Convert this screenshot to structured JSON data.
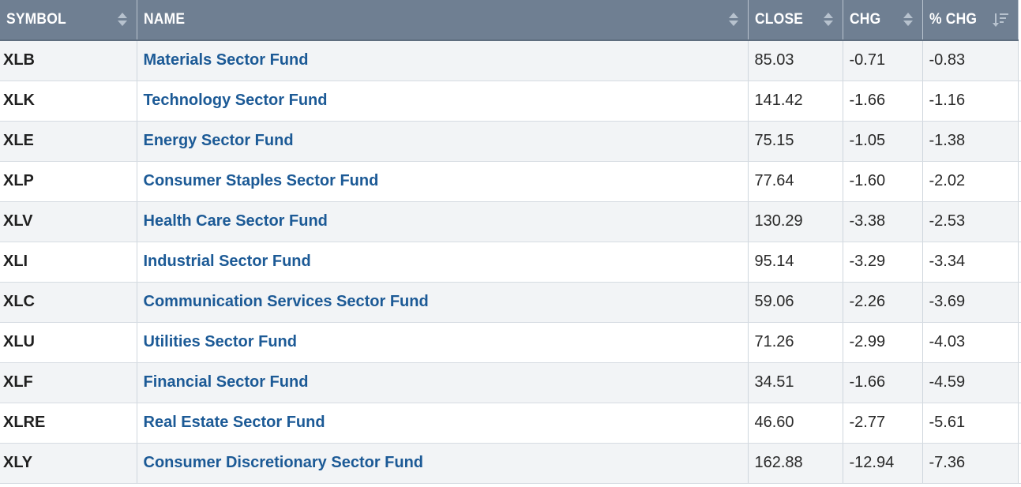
{
  "columns": {
    "symbol": "SYMBOL",
    "name": "NAME",
    "close": "CLOSE",
    "chg": "CHG",
    "pct_chg": "% CHG"
  },
  "rows": [
    {
      "symbol": "XLB",
      "name": "Materials Sector Fund",
      "close": "85.03",
      "chg": "-0.71",
      "pct_chg": "-0.83"
    },
    {
      "symbol": "XLK",
      "name": "Technology Sector Fund",
      "close": "141.42",
      "chg": "-1.66",
      "pct_chg": "-1.16"
    },
    {
      "symbol": "XLE",
      "name": "Energy Sector Fund",
      "close": "75.15",
      "chg": "-1.05",
      "pct_chg": "-1.38"
    },
    {
      "symbol": "XLP",
      "name": "Consumer Staples Sector Fund",
      "close": "77.64",
      "chg": "-1.60",
      "pct_chg": "-2.02"
    },
    {
      "symbol": "XLV",
      "name": "Health Care Sector Fund",
      "close": "130.29",
      "chg": "-3.38",
      "pct_chg": "-2.53"
    },
    {
      "symbol": "XLI",
      "name": "Industrial Sector Fund",
      "close": "95.14",
      "chg": "-3.29",
      "pct_chg": "-3.34"
    },
    {
      "symbol": "XLC",
      "name": "Communication Services Sector Fund",
      "close": "59.06",
      "chg": "-2.26",
      "pct_chg": "-3.69"
    },
    {
      "symbol": "XLU",
      "name": "Utilities Sector Fund",
      "close": "71.26",
      "chg": "-2.99",
      "pct_chg": "-4.03"
    },
    {
      "symbol": "XLF",
      "name": "Financial Sector Fund",
      "close": "34.51",
      "chg": "-1.66",
      "pct_chg": "-4.59"
    },
    {
      "symbol": "XLRE",
      "name": "Real Estate Sector Fund",
      "close": "46.60",
      "chg": "-2.77",
      "pct_chg": "-5.61"
    },
    {
      "symbol": "XLY",
      "name": "Consumer Discretionary Sector Fund",
      "close": "162.88",
      "chg": "-12.94",
      "pct_chg": "-7.36"
    }
  ],
  "icons": {
    "sortable": "sort-both-icon",
    "sorted_desc": "sort-descending-icon"
  },
  "colors": {
    "header_bg": "#6f7f92",
    "link": "#1c5a96",
    "row_alt": "#f2f4f6"
  }
}
